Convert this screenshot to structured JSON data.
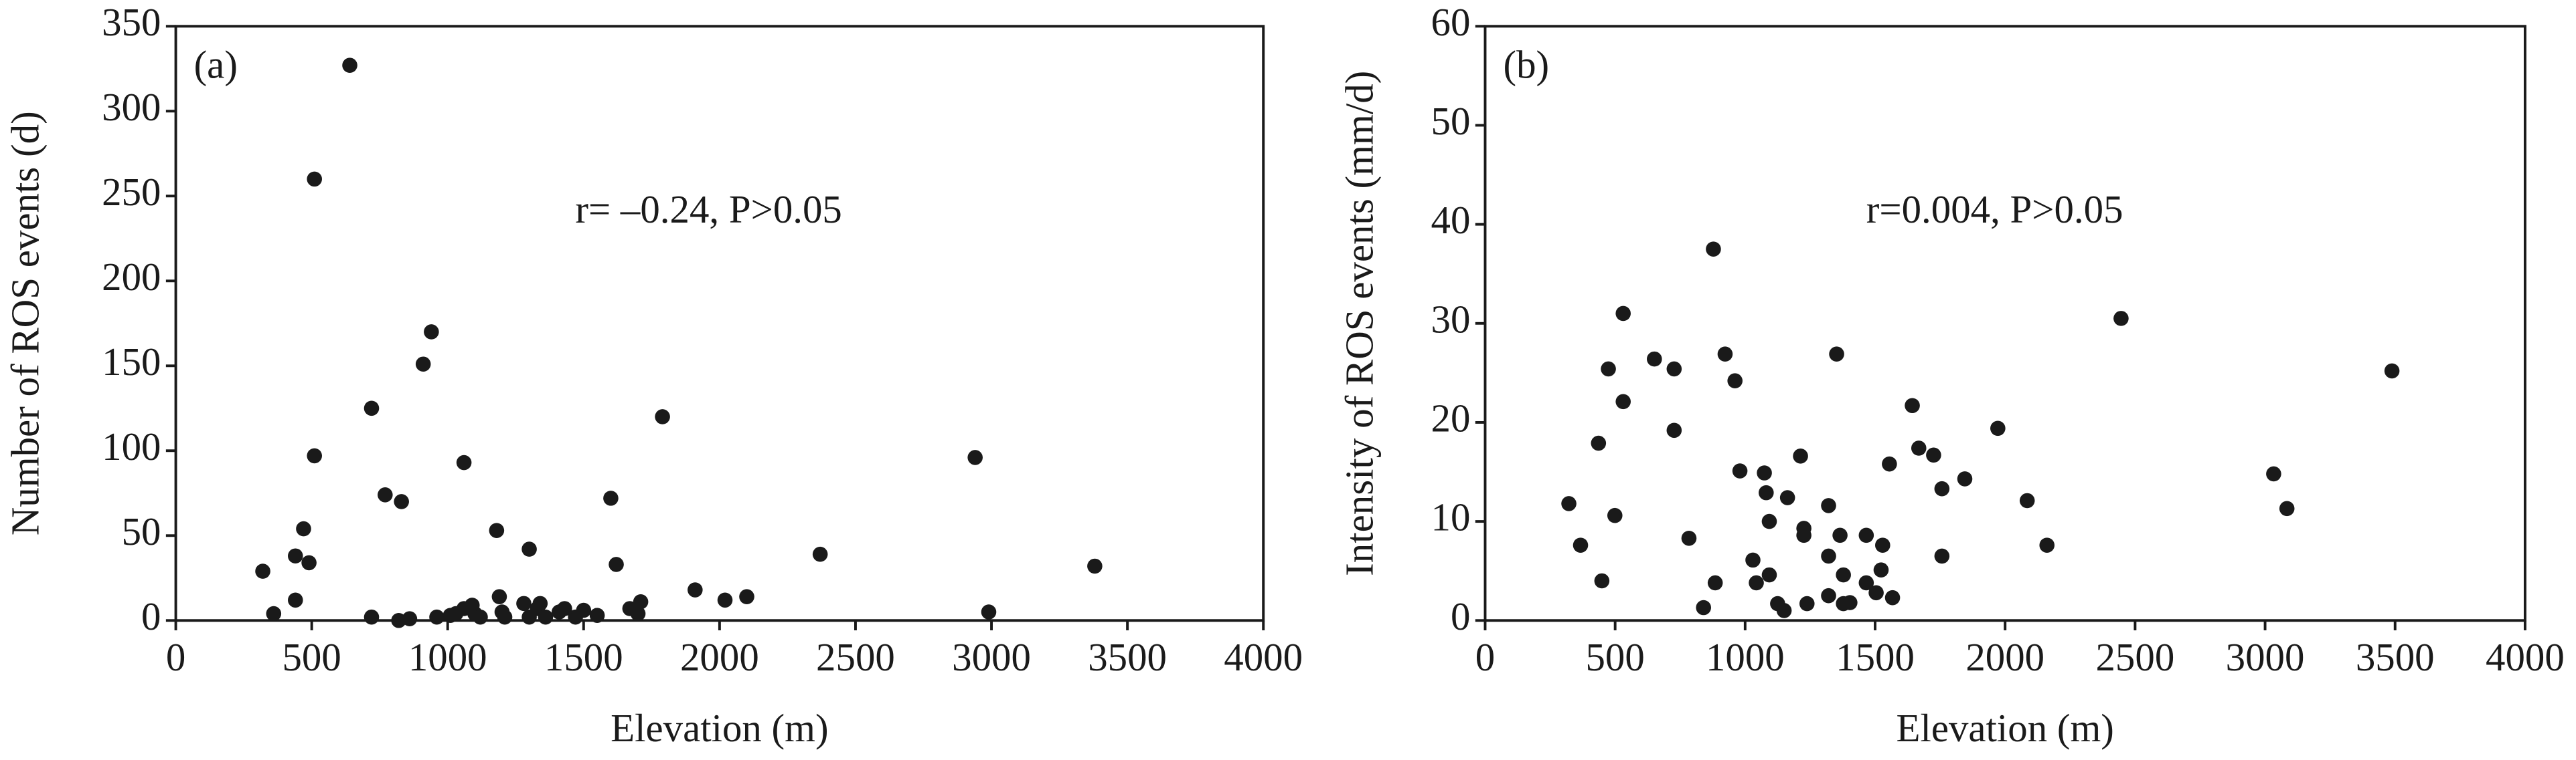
{
  "chart_data": [
    {
      "type": "scatter",
      "panel_label": "(a)",
      "annotation": "r= –0.24, P>0.05",
      "x_label": "Elevation (m)",
      "y_label": "Number of ROS events (d)",
      "color": "#1a1a1a",
      "xlim": [
        0,
        4000
      ],
      "xticks": [
        0,
        500,
        1000,
        1500,
        2000,
        2500,
        3000,
        3500,
        4000
      ],
      "ylim": [
        0,
        350
      ],
      "yticks": [
        0,
        50,
        100,
        150,
        200,
        250,
        300,
        350
      ],
      "x": [
        320,
        360,
        440,
        440,
        470,
        490,
        510,
        510,
        640,
        720,
        720,
        770,
        830,
        820,
        860,
        910,
        940,
        960,
        1010,
        1030,
        1060,
        1060,
        1090,
        1100,
        1120,
        1180,
        1190,
        1200,
        1210,
        1280,
        1300,
        1300,
        1330,
        1340,
        1360,
        1410,
        1430,
        1470,
        1500,
        1550,
        1600,
        1620,
        1670,
        1700,
        1710,
        1790,
        1910,
        2020,
        2100,
        2370,
        2940,
        2990,
        3380
      ],
      "values": [
        29,
        4,
        12,
        38,
        54,
        34,
        260,
        97,
        327,
        125,
        2,
        74,
        70,
        0,
        1,
        151,
        170,
        2,
        3,
        4,
        7,
        93,
        9,
        4,
        2,
        53,
        14,
        5,
        2,
        10,
        2,
        42,
        7,
        10,
        2,
        5,
        7,
        2,
        6,
        3,
        72,
        33,
        7,
        4,
        11,
        120,
        18,
        12,
        14,
        39,
        96,
        5,
        32
      ]
    },
    {
      "type": "scatter",
      "panel_label": "(b)",
      "annotation": "r=0.004, P>0.05",
      "x_label": "Elevation (m)",
      "y_label": "Intensity of ROS events (mm/d)",
      "color": "#1a1a1a",
      "xlim": [
        0,
        4000
      ],
      "xticks": [
        0,
        500,
        1000,
        1500,
        2000,
        2500,
        3000,
        3500,
        4000
      ],
      "ylim": [
        0,
        60
      ],
      "yticks": [
        0,
        10,
        20,
        30,
        40,
        50,
        60
      ],
      "x": [
        322,
        367,
        436,
        449,
        474,
        499,
        531,
        531,
        651,
        727,
        727,
        784,
        840,
        878,
        885,
        923,
        961,
        980,
        1030,
        1043,
        1074,
        1081,
        1093,
        1093,
        1125,
        1150,
        1163,
        1213,
        1226,
        1226,
        1238,
        1321,
        1321,
        1321,
        1352,
        1365,
        1378,
        1378,
        1403,
        1466,
        1466,
        1504,
        1523,
        1529,
        1555,
        1567,
        1643,
        1668,
        1725,
        1757,
        1757,
        1845,
        1972,
        2085,
        2161,
        2446,
        3033,
        3084,
        3488
      ],
      "values": [
        11.8,
        7.6,
        17.9,
        4.0,
        25.4,
        10.6,
        22.1,
        31.0,
        26.4,
        25.4,
        19.2,
        8.3,
        1.3,
        37.5,
        3.8,
        26.9,
        24.2,
        15.1,
        6.1,
        3.8,
        14.9,
        12.9,
        10.0,
        4.6,
        1.7,
        1.0,
        12.4,
        16.6,
        9.3,
        8.6,
        1.7,
        11.6,
        6.5,
        2.5,
        26.9,
        8.6,
        4.6,
        1.7,
        1.8,
        8.6,
        3.8,
        2.8,
        5.1,
        7.6,
        15.8,
        2.3,
        21.7,
        17.4,
        16.7,
        6.5,
        13.3,
        14.3,
        19.4,
        12.1,
        7.6,
        30.5,
        14.8,
        11.3,
        25.2
      ]
    }
  ]
}
